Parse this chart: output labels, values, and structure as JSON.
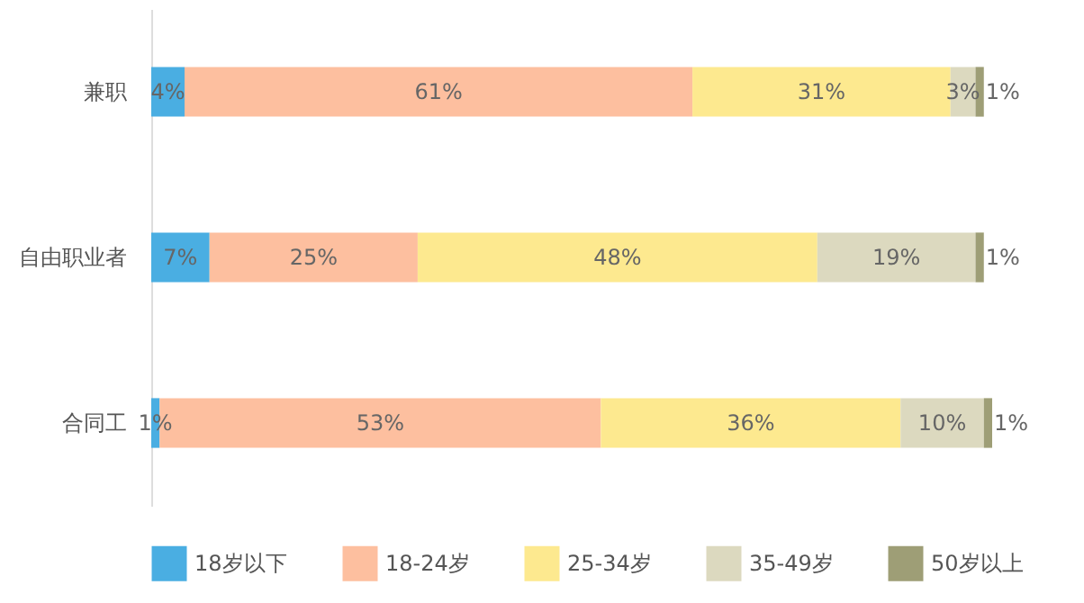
{
  "chart_data": {
    "type": "bar",
    "orientation": "horizontal",
    "stacked": true,
    "legend": "bottom",
    "categories": [
      "兼职",
      "自由职业者",
      "合同工"
    ],
    "series": [
      {
        "name": "18岁以下",
        "color": "#4aaee2",
        "values": [
          4,
          7,
          1
        ],
        "value_labels": [
          "4%",
          "7%",
          "1%"
        ]
      },
      {
        "name": "18-24岁",
        "color": "#fdbf9f",
        "values": [
          61,
          25,
          53
        ],
        "value_labels": [
          "61%",
          "25%",
          "53%"
        ]
      },
      {
        "name": "25-34岁",
        "color": "#fde98f",
        "values": [
          31,
          48,
          36
        ],
        "value_labels": [
          "31%",
          "48%",
          "36%"
        ]
      },
      {
        "name": "35-49岁",
        "color": "#dcd9bf",
        "values": [
          3,
          19,
          10
        ],
        "value_labels": [
          "3%",
          "19%",
          "10%"
        ]
      },
      {
        "name": "50岁以上",
        "color": "#9e9e76",
        "values": [
          1,
          1,
          1
        ],
        "value_labels": [
          "1%",
          "1%",
          "1%"
        ]
      }
    ]
  }
}
